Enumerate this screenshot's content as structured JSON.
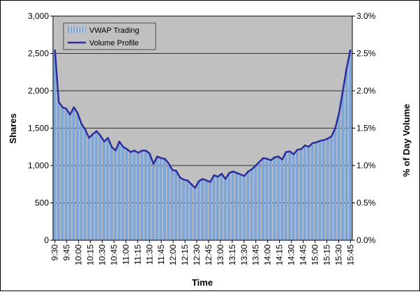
{
  "chart_data": {
    "type": "bar",
    "xlabel": "Time",
    "ylabel": "Shares",
    "y2label": "% of Day Volume",
    "ylim": [
      0,
      3000
    ],
    "y2lim": [
      0,
      3.0
    ],
    "yticks": [
      "0",
      "500",
      "1,000",
      "1,500",
      "2,000",
      "2,500",
      "3,000"
    ],
    "y2ticks": [
      "0.0%",
      "0.5%",
      "1.0%",
      "1.5%",
      "2.0%",
      "2.5%",
      "3.0%"
    ],
    "x_tick_labels": [
      "9:30",
      "9:45",
      "10:00",
      "10:15",
      "10:30",
      "10:45",
      "11:00",
      "11:15",
      "11:30",
      "11:45",
      "12:00",
      "12:15",
      "12:30",
      "12:45",
      "13:00",
      "13:15",
      "13:30",
      "13:45",
      "14:00",
      "14:15",
      "14:30",
      "14:45",
      "15:00",
      "15:15",
      "15:30",
      "15:45"
    ],
    "grid": true,
    "legend_position": "top-left",
    "colors": {
      "plot_background": "#c0c0c0",
      "bars": "#7fa6d9",
      "bar_stripe": "#f0f4fb",
      "line": "#2c2d9c"
    },
    "series": [
      {
        "name": "VWAP Trading",
        "type": "bar",
        "values": [
          2530,
          1850,
          1780,
          1760,
          1680,
          1780,
          1700,
          1560,
          1480,
          1370,
          1420,
          1460,
          1400,
          1320,
          1370,
          1250,
          1200,
          1320,
          1250,
          1220,
          1180,
          1200,
          1170,
          1200,
          1200,
          1160,
          1020,
          1120,
          1100,
          1090,
          1030,
          940,
          930,
          840,
          810,
          800,
          750,
          700,
          790,
          820,
          800,
          780,
          870,
          850,
          890,
          820,
          900,
          920,
          900,
          880,
          860,
          920,
          950,
          1000,
          1050,
          1100,
          1090,
          1070,
          1110,
          1120,
          1080,
          1180,
          1190,
          1150,
          1210,
          1220,
          1270,
          1250,
          1300,
          1310,
          1330,
          1340,
          1360,
          1390,
          1500,
          1700,
          2000,
          2300,
          2550
        ]
      },
      {
        "name": "Volume Profile",
        "type": "line",
        "values": [
          2.55,
          1.85,
          1.78,
          1.76,
          1.68,
          1.78,
          1.7,
          1.56,
          1.48,
          1.37,
          1.42,
          1.46,
          1.4,
          1.32,
          1.37,
          1.25,
          1.2,
          1.32,
          1.25,
          1.22,
          1.18,
          1.2,
          1.17,
          1.2,
          1.2,
          1.16,
          1.02,
          1.12,
          1.1,
          1.09,
          1.03,
          0.94,
          0.93,
          0.84,
          0.81,
          0.8,
          0.75,
          0.7,
          0.79,
          0.82,
          0.8,
          0.78,
          0.87,
          0.85,
          0.89,
          0.82,
          0.9,
          0.92,
          0.9,
          0.88,
          0.86,
          0.92,
          0.95,
          1.0,
          1.05,
          1.1,
          1.09,
          1.07,
          1.11,
          1.12,
          1.08,
          1.18,
          1.19,
          1.15,
          1.21,
          1.22,
          1.27,
          1.25,
          1.3,
          1.31,
          1.33,
          1.34,
          1.36,
          1.39,
          1.5,
          1.7,
          2.0,
          2.3,
          2.55
        ]
      }
    ]
  }
}
